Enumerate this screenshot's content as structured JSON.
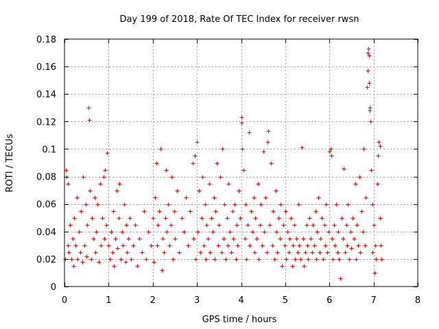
{
  "chart_data": {
    "type": "scatter",
    "title": "Day 199 of 2018, Rate Of TEC Index for receiver rwsn",
    "xlabel": "GPS time / hours",
    "ylabel": "ROTI / TECUs",
    "xlim": [
      0,
      8
    ],
    "ylim": [
      0,
      0.18
    ],
    "xticks": [
      0,
      1,
      2,
      3,
      4,
      5,
      6,
      7,
      8
    ],
    "yticks": [
      0,
      0.02,
      0.04,
      0.06,
      0.08,
      0.1,
      0.12,
      0.14,
      0.16,
      0.18
    ],
    "xtick_labels": [
      "0",
      "1",
      "2",
      "3",
      "4",
      "5",
      "6",
      "7",
      "8"
    ],
    "ytick_labels": [
      "0",
      "0.02",
      "0.04",
      "0.06",
      "0.08",
      "0.1",
      "0.12",
      "0.14",
      "0.16",
      "0.18"
    ],
    "grid": true,
    "marker": "+",
    "color": "#ff0000",
    "series": [
      {
        "name": "ROTI",
        "points": [
          [
            0.02,
            0.02
          ],
          [
            0.03,
            0.085
          ],
          [
            0.05,
            0.08
          ],
          [
            0.07,
            0.075
          ],
          [
            0.08,
            0.03
          ],
          [
            0.1,
            0.025
          ],
          [
            0.12,
            0.045
          ],
          [
            0.15,
            0.02
          ],
          [
            0.18,
            0.035
          ],
          [
            0.2,
            0.015
          ],
          [
            0.22,
            0.05
          ],
          [
            0.25,
            0.03
          ],
          [
            0.28,
            0.065
          ],
          [
            0.3,
            0.02
          ],
          [
            0.32,
            0.04
          ],
          [
            0.35,
            0.025
          ],
          [
            0.38,
            0.055
          ],
          [
            0.4,
            0.018
          ],
          [
            0.42,
            0.08
          ],
          [
            0.45,
            0.03
          ],
          [
            0.48,
            0.06
          ],
          [
            0.5,
            0.022
          ],
          [
            0.52,
            0.045
          ],
          [
            0.55,
            0.13
          ],
          [
            0.56,
            0.121
          ],
          [
            0.58,
            0.07
          ],
          [
            0.6,
            0.02
          ],
          [
            0.62,
            0.05
          ],
          [
            0.65,
            0.035
          ],
          [
            0.68,
            0.065
          ],
          [
            0.7,
            0.025
          ],
          [
            0.72,
            0.04
          ],
          [
            0.75,
            0.06
          ],
          [
            0.78,
            0.018
          ],
          [
            0.8,
            0.075
          ],
          [
            0.82,
            0.03
          ],
          [
            0.85,
            0.05
          ],
          [
            0.88,
            0.08
          ],
          [
            0.9,
            0.035
          ],
          [
            0.92,
            0.085
          ],
          [
            0.95,
            0.045
          ],
          [
            0.97,
            0.097
          ],
          [
            1.0,
            0.03
          ],
          [
            1.02,
            0.02
          ],
          [
            1.05,
            0.04
          ],
          [
            1.08,
            0.025
          ],
          [
            1.1,
            0.055
          ],
          [
            1.12,
            0.015
          ],
          [
            1.15,
            0.035
          ],
          [
            1.18,
            0.07
          ],
          [
            1.2,
            0.028
          ],
          [
            1.22,
            0.05
          ],
          [
            1.25,
            0.075
          ],
          [
            1.28,
            0.02
          ],
          [
            1.3,
            0.04
          ],
          [
            1.32,
            0.03
          ],
          [
            1.35,
            0.06
          ],
          [
            1.38,
            0.018
          ],
          [
            1.4,
            0.045
          ],
          [
            1.42,
            0.025
          ],
          [
            1.45,
            0.035
          ],
          [
            1.48,
            0.05
          ],
          [
            1.5,
            0.02
          ],
          [
            1.55,
            0.03
          ],
          [
            1.6,
            0.045
          ],
          [
            1.65,
            0.015
          ],
          [
            1.7,
            0.035
          ],
          [
            1.75,
            0.025
          ],
          [
            1.8,
            0.055
          ],
          [
            1.85,
            0.02
          ],
          [
            1.9,
            0.04
          ],
          [
            1.95,
            0.03
          ],
          [
            2.0,
            0.05
          ],
          [
            2.02,
            0.018
          ],
          [
            2.05,
            0.065
          ],
          [
            2.08,
            0.09
          ],
          [
            2.1,
            0.03
          ],
          [
            2.12,
            0.045
          ],
          [
            2.15,
            0.055
          ],
          [
            2.18,
            0.1
          ],
          [
            2.2,
            0.012
          ],
          [
            2.22,
            0.035
          ],
          [
            2.25,
            0.025
          ],
          [
            2.28,
            0.05
          ],
          [
            2.3,
            0.085
          ],
          [
            2.32,
            0.04
          ],
          [
            2.35,
            0.06
          ],
          [
            2.38,
            0.03
          ],
          [
            2.4,
            0.045
          ],
          [
            2.42,
            0.08
          ],
          [
            2.45,
            0.02
          ],
          [
            2.48,
            0.055
          ],
          [
            2.5,
            0.035
          ],
          [
            2.55,
            0.07
          ],
          [
            2.6,
            0.025
          ],
          [
            2.65,
            0.05
          ],
          [
            2.7,
            0.04
          ],
          [
            2.75,
            0.065
          ],
          [
            2.8,
            0.03
          ],
          [
            2.85,
            0.055
          ],
          [
            2.9,
            0.09
          ],
          [
            2.92,
            0.035
          ],
          [
            2.95,
            0.095
          ],
          [
            2.97,
            0.02
          ],
          [
            3.0,
            0.105
          ],
          [
            3.02,
            0.04
          ],
          [
            3.05,
            0.07
          ],
          [
            3.08,
            0.025
          ],
          [
            3.1,
            0.05
          ],
          [
            3.12,
            0.08
          ],
          [
            3.15,
            0.03
          ],
          [
            3.18,
            0.06
          ],
          [
            3.2,
            0.02
          ],
          [
            3.22,
            0.045
          ],
          [
            3.25,
            0.035
          ],
          [
            3.28,
            0.075
          ],
          [
            3.3,
            0.025
          ],
          [
            3.32,
            0.05
          ],
          [
            3.35,
            0.04
          ],
          [
            3.38,
            0.065
          ],
          [
            3.4,
            0.02
          ],
          [
            3.42,
            0.055
          ],
          [
            3.45,
            0.09
          ],
          [
            3.48,
            0.03
          ],
          [
            3.5,
            0.045
          ],
          [
            3.52,
            0.08
          ],
          [
            3.55,
            0.025
          ],
          [
            3.58,
            0.1
          ],
          [
            3.6,
            0.035
          ],
          [
            3.62,
            0.06
          ],
          [
            3.65,
            0.02
          ],
          [
            3.68,
            0.05
          ],
          [
            3.7,
            0.03
          ],
          [
            3.72,
            0.075
          ],
          [
            3.75,
            0.04
          ],
          [
            3.78,
            0.025
          ],
          [
            3.8,
            0.055
          ],
          [
            3.82,
            0.035
          ],
          [
            3.85,
            0.06
          ],
          [
            3.88,
            0.02
          ],
          [
            3.9,
            0.045
          ],
          [
            3.92,
            0.03
          ],
          [
            3.95,
            0.07
          ],
          [
            3.98,
            0.05
          ],
          [
            4.0,
            0.123
          ],
          [
            4.01,
            0.119
          ],
          [
            4.02,
            0.1
          ],
          [
            4.05,
            0.085
          ],
          [
            4.08,
            0.035
          ],
          [
            4.1,
            0.06
          ],
          [
            4.12,
            0.02
          ],
          [
            4.15,
            0.045
          ],
          [
            4.18,
            0.112
          ],
          [
            4.2,
            0.03
          ],
          [
            4.22,
            0.055
          ],
          [
            4.25,
            0.04
          ],
          [
            4.28,
            0.065
          ],
          [
            4.3,
            0.025
          ],
          [
            4.32,
            0.05
          ],
          [
            4.35,
            0.035
          ],
          [
            4.38,
            0.075
          ],
          [
            4.4,
            0.02
          ],
          [
            4.42,
            0.045
          ],
          [
            4.45,
            0.06
          ],
          [
            4.48,
            0.03
          ],
          [
            4.5,
            0.098
          ],
          [
            4.52,
            0.04
          ],
          [
            4.55,
            0.065
          ],
          [
            4.58,
            0.025
          ],
          [
            4.6,
            0.105
          ],
          [
            4.62,
            0.113
          ],
          [
            4.65,
            0.045
          ],
          [
            4.68,
            0.09
          ],
          [
            4.7,
            0.03
          ],
          [
            4.72,
            0.055
          ],
          [
            4.75,
            0.02
          ],
          [
            4.78,
            0.07
          ],
          [
            4.8,
            0.04
          ],
          [
            4.82,
            0.025
          ],
          [
            4.85,
            0.05
          ],
          [
            4.88,
            0.035
          ],
          [
            4.9,
            0.06
          ],
          [
            4.92,
            0.015
          ],
          [
            4.95,
            0.045
          ],
          [
            4.98,
            0.03
          ],
          [
            5.0,
            0.055
          ],
          [
            5.02,
            0.02
          ],
          [
            5.05,
            0.04
          ],
          [
            5.08,
            0.025
          ],
          [
            5.1,
            0.035
          ],
          [
            5.12,
            0.05
          ],
          [
            5.15,
            0.015
          ],
          [
            5.18,
            0.03
          ],
          [
            5.2,
            0.045
          ],
          [
            5.22,
            0.02
          ],
          [
            5.25,
            0.035
          ],
          [
            5.28,
            0.025
          ],
          [
            5.3,
            0.06
          ],
          [
            5.32,
            0.03
          ],
          [
            5.35,
            0.02
          ],
          [
            5.38,
            0.101
          ],
          [
            5.4,
            0.035
          ],
          [
            5.42,
            0.015
          ],
          [
            5.45,
            0.025
          ],
          [
            5.48,
            0.045
          ],
          [
            5.5,
            0.03
          ],
          [
            5.52,
            0.02
          ],
          [
            5.55,
            0.05
          ],
          [
            5.58,
            0.035
          ],
          [
            5.6,
            0.025
          ],
          [
            5.62,
            0.045
          ],
          [
            5.65,
            0.03
          ],
          [
            5.68,
            0.055
          ],
          [
            5.7,
            0.02
          ],
          [
            5.72,
            0.04
          ],
          [
            5.75,
            0.065
          ],
          [
            5.78,
            0.025
          ],
          [
            5.8,
            0.035
          ],
          [
            5.82,
            0.05
          ],
          [
            5.85,
            0.02
          ],
          [
            5.88,
            0.045
          ],
          [
            5.9,
            0.03
          ],
          [
            5.92,
            0.06
          ],
          [
            5.95,
            0.025
          ],
          [
            5.98,
            0.04
          ],
          [
            6.0,
            0.098
          ],
          [
            6.02,
            0.1
          ],
          [
            6.04,
            0.095
          ],
          [
            6.06,
            0.035
          ],
          [
            6.08,
            0.02
          ],
          [
            6.1,
            0.045
          ],
          [
            6.12,
            0.03
          ],
          [
            6.15,
            0.06
          ],
          [
            6.18,
            0.025
          ],
          [
            6.2,
            0.04
          ],
          [
            6.22,
            0.02
          ],
          [
            6.25,
            0.006
          ],
          [
            6.28,
            0.05
          ],
          [
            6.3,
            0.035
          ],
          [
            6.32,
            0.086
          ],
          [
            6.35,
            0.025
          ],
          [
            6.38,
            0.045
          ],
          [
            6.4,
            0.03
          ],
          [
            6.42,
            0.06
          ],
          [
            6.45,
            0.02
          ],
          [
            6.48,
            0.04
          ],
          [
            6.5,
            0.028
          ],
          [
            6.52,
            0.05
          ],
          [
            6.55,
            0.035
          ],
          [
            6.58,
            0.075
          ],
          [
            6.6,
            0.02
          ],
          [
            6.62,
            0.045
          ],
          [
            6.65,
            0.03
          ],
          [
            6.68,
            0.08
          ],
          [
            6.7,
            0.025
          ],
          [
            6.72,
            0.055
          ],
          [
            6.75,
            0.04
          ],
          [
            6.78,
            0.1
          ],
          [
            6.8,
            0.03
          ],
          [
            6.82,
            0.065
          ],
          [
            6.85,
            0.145
          ],
          [
            6.86,
            0.157
          ],
          [
            6.87,
            0.17
          ],
          [
            6.88,
            0.173
          ],
          [
            6.89,
            0.168
          ],
          [
            6.9,
            0.148
          ],
          [
            6.91,
            0.128
          ],
          [
            6.92,
            0.13
          ],
          [
            6.93,
            0.12
          ],
          [
            6.95,
            0.085
          ],
          [
            6.97,
            0.06
          ],
          [
            6.98,
            0.025
          ],
          [
            7.0,
            0.045
          ],
          [
            7.02,
            0.01
          ],
          [
            7.04,
            0.03
          ],
          [
            7.06,
            0.02
          ],
          [
            7.08,
            0.075
          ],
          [
            7.1,
            0.095
          ],
          [
            7.12,
            0.105
          ],
          [
            7.14,
            0.102
          ],
          [
            7.15,
            0.05
          ],
          [
            7.16,
            0.03
          ],
          [
            7.17,
            0.02
          ]
        ]
      }
    ]
  }
}
